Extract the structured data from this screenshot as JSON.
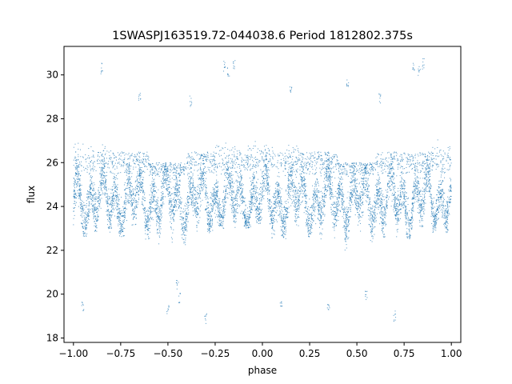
{
  "chart_data": {
    "type": "scatter",
    "title": "1SWASPJ163519.72-044038.6 Period 1812802.375s",
    "xlabel": "phase",
    "ylabel": "flux",
    "xlim": [
      -1.05,
      1.05
    ],
    "ylim": [
      17.8,
      31.3
    ],
    "x_ticks": [
      -1.0,
      -0.75,
      -0.5,
      -0.25,
      0.0,
      0.25,
      0.5,
      0.75,
      1.0
    ],
    "x_tick_labels": [
      "−1.00",
      "−0.75",
      "−0.50",
      "−0.25",
      "0.00",
      "0.25",
      "0.50",
      "0.75",
      "1.00"
    ],
    "y_ticks": [
      18,
      20,
      22,
      24,
      26,
      28,
      30
    ],
    "y_tick_labels": [
      "18",
      "20",
      "22",
      "24",
      "26",
      "28",
      "30"
    ],
    "grid": false,
    "legend": "none",
    "point_color": "#1f77b4",
    "phase_segments": [
      {
        "x": [
          -1.0,
          -0.9
        ],
        "y": [
          22.5,
          28.6
        ]
      },
      {
        "x": [
          -0.9,
          -0.8
        ],
        "y": [
          22.8,
          27.5
        ]
      },
      {
        "x": [
          -0.8,
          -0.6
        ],
        "y": [
          22.5,
          26.5
        ]
      },
      {
        "x": [
          -0.6,
          -0.4
        ],
        "y": [
          22.0,
          26.0
        ]
      },
      {
        "x": [
          -0.4,
          -0.25
        ],
        "y": [
          22.8,
          26.5
        ]
      },
      {
        "x": [
          -0.25,
          -0.05
        ],
        "y": [
          23.0,
          27.0
        ]
      },
      {
        "x": [
          -0.05,
          0.05
        ],
        "y": [
          23.2,
          27.5
        ]
      },
      {
        "x": [
          0.05,
          0.2
        ],
        "y": [
          22.5,
          26.8
        ]
      },
      {
        "x": [
          0.2,
          0.4
        ],
        "y": [
          22.5,
          26.5
        ]
      },
      {
        "x": [
          0.4,
          0.6
        ],
        "y": [
          22.0,
          26.0
        ]
      },
      {
        "x": [
          0.6,
          0.8
        ],
        "y": [
          22.5,
          26.5
        ]
      },
      {
        "x": [
          0.8,
          0.9
        ],
        "y": [
          23.0,
          26.5
        ]
      },
      {
        "x": [
          0.9,
          1.0
        ],
        "y": [
          22.8,
          27.8
        ]
      }
    ],
    "outlier_points": [
      {
        "x": -0.2,
        "y": 30.4
      },
      {
        "x": -0.18,
        "y": 30.1
      },
      {
        "x": -0.15,
        "y": 30.5
      },
      {
        "x": 0.8,
        "y": 30.4
      },
      {
        "x": 0.83,
        "y": 30.2
      },
      {
        "x": 0.85,
        "y": 30.5
      },
      {
        "x": -0.95,
        "y": 19.4
      },
      {
        "x": -0.5,
        "y": 19.3
      },
      {
        "x": -0.45,
        "y": 20.4
      },
      {
        "x": -0.44,
        "y": 19.8
      },
      {
        "x": 0.1,
        "y": 19.5
      },
      {
        "x": 0.35,
        "y": 19.4
      },
      {
        "x": 0.55,
        "y": 20.0
      },
      {
        "x": -0.3,
        "y": 18.9
      },
      {
        "x": 0.7,
        "y": 19.0
      },
      {
        "x": -0.65,
        "y": 29.0
      },
      {
        "x": -0.38,
        "y": 28.8
      },
      {
        "x": 0.62,
        "y": 28.9
      },
      {
        "x": 0.15,
        "y": 29.3
      },
      {
        "x": -0.85,
        "y": 30.3
      },
      {
        "x": 0.45,
        "y": 29.7
      }
    ]
  }
}
